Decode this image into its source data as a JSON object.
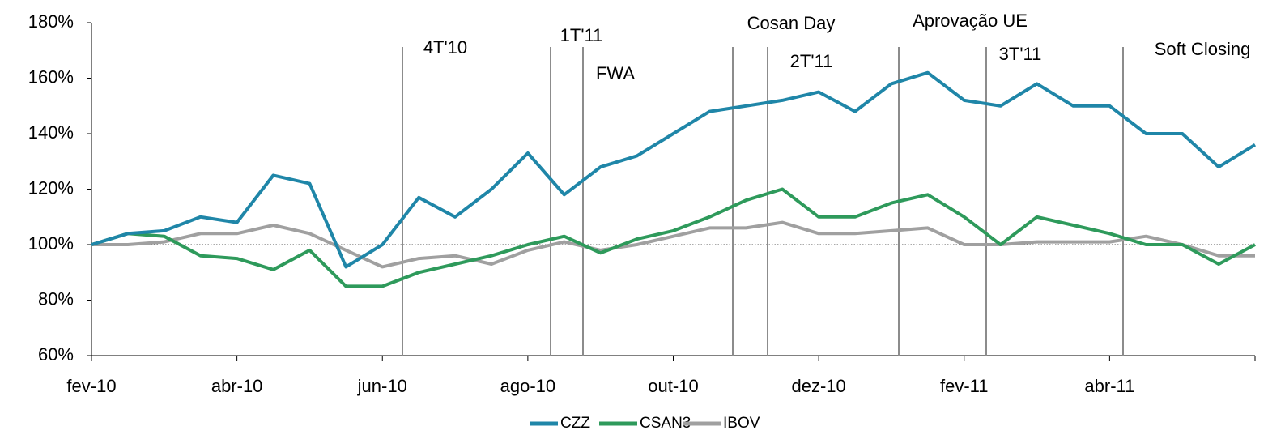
{
  "chart_data": {
    "type": "line",
    "categories": [
      "fev-10",
      null,
      null,
      null,
      "abr-10",
      null,
      null,
      null,
      "jun-10",
      null,
      null,
      null,
      "ago-10",
      null,
      null,
      null,
      "out-10",
      null,
      null,
      null,
      "dez-10",
      null,
      null,
      null,
      "fev-11",
      null,
      null,
      null,
      "abr-11",
      null,
      null,
      null,
      null
    ],
    "series": [
      {
        "name": "CZZ",
        "color": "#1f86a8",
        "values": [
          100,
          104,
          105,
          110,
          108,
          125,
          122,
          92,
          100,
          117,
          110,
          120,
          133,
          118,
          128,
          132,
          140,
          148,
          150,
          152,
          155,
          148,
          158,
          162,
          152,
          150,
          158,
          150,
          150,
          140,
          140,
          128,
          136
        ]
      },
      {
        "name": "CSAN3",
        "color": "#2e9a5b",
        "values": [
          100,
          104,
          103,
          96,
          95,
          91,
          98,
          85,
          85,
          90,
          93,
          96,
          100,
          103,
          97,
          102,
          105,
          110,
          116,
          120,
          110,
          110,
          115,
          118,
          110,
          100,
          110,
          107,
          104,
          100,
          100,
          93,
          100
        ]
      },
      {
        "name": "IBOV",
        "color": "#a0a0a0",
        "values": [
          100,
          100,
          101,
          104,
          104,
          107,
          104,
          98,
          92,
          95,
          96,
          93,
          98,
          101,
          98,
          100,
          103,
          106,
          106,
          108,
          104,
          104,
          105,
          106,
          100,
          100,
          101,
          101,
          101,
          103,
          100,
          96,
          96
        ]
      }
    ],
    "ylim": [
      60,
      180
    ],
    "yticks": [
      {
        "value": 60,
        "label": "60%"
      },
      {
        "value": 80,
        "label": "80%"
      },
      {
        "value": 100,
        "label": "100%"
      },
      {
        "value": 120,
        "label": "120%"
      },
      {
        "value": 140,
        "label": "140%"
      },
      {
        "value": 160,
        "label": "160%"
      },
      {
        "value": 180,
        "label": "180%"
      }
    ],
    "reference_line": 100,
    "annotations": [
      "4T'10",
      "1T'11",
      "FWA",
      "Cosan Day",
      "2T'11",
      "Aprovação UE",
      "3T'11",
      "Soft Closing"
    ]
  }
}
